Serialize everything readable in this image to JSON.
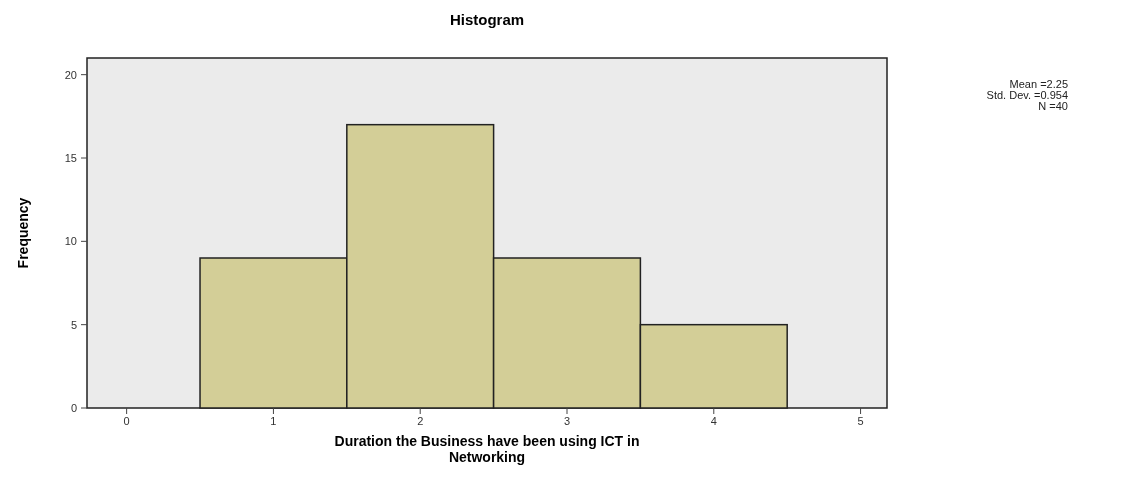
{
  "chart_data": {
    "type": "histogram",
    "title": "Histogram",
    "xlabel": "Duration the Business have been using ICT in Networking",
    "ylabel": "Frequency",
    "bins": [
      0.5,
      1.5,
      2.5,
      3.5,
      4.5
    ],
    "values": [
      9,
      17,
      9,
      5
    ],
    "color": "#d3ce97",
    "xlim": [
      -0.27,
      5.18
    ],
    "xticks": [
      0,
      1,
      2,
      3,
      4,
      5
    ],
    "ylim": [
      0,
      21
    ],
    "yticks": [
      0,
      5,
      10,
      15,
      20
    ],
    "grid": false,
    "annotations": [
      "Mean =2.25",
      "Std. Dev. =0.954",
      "N =40"
    ]
  }
}
